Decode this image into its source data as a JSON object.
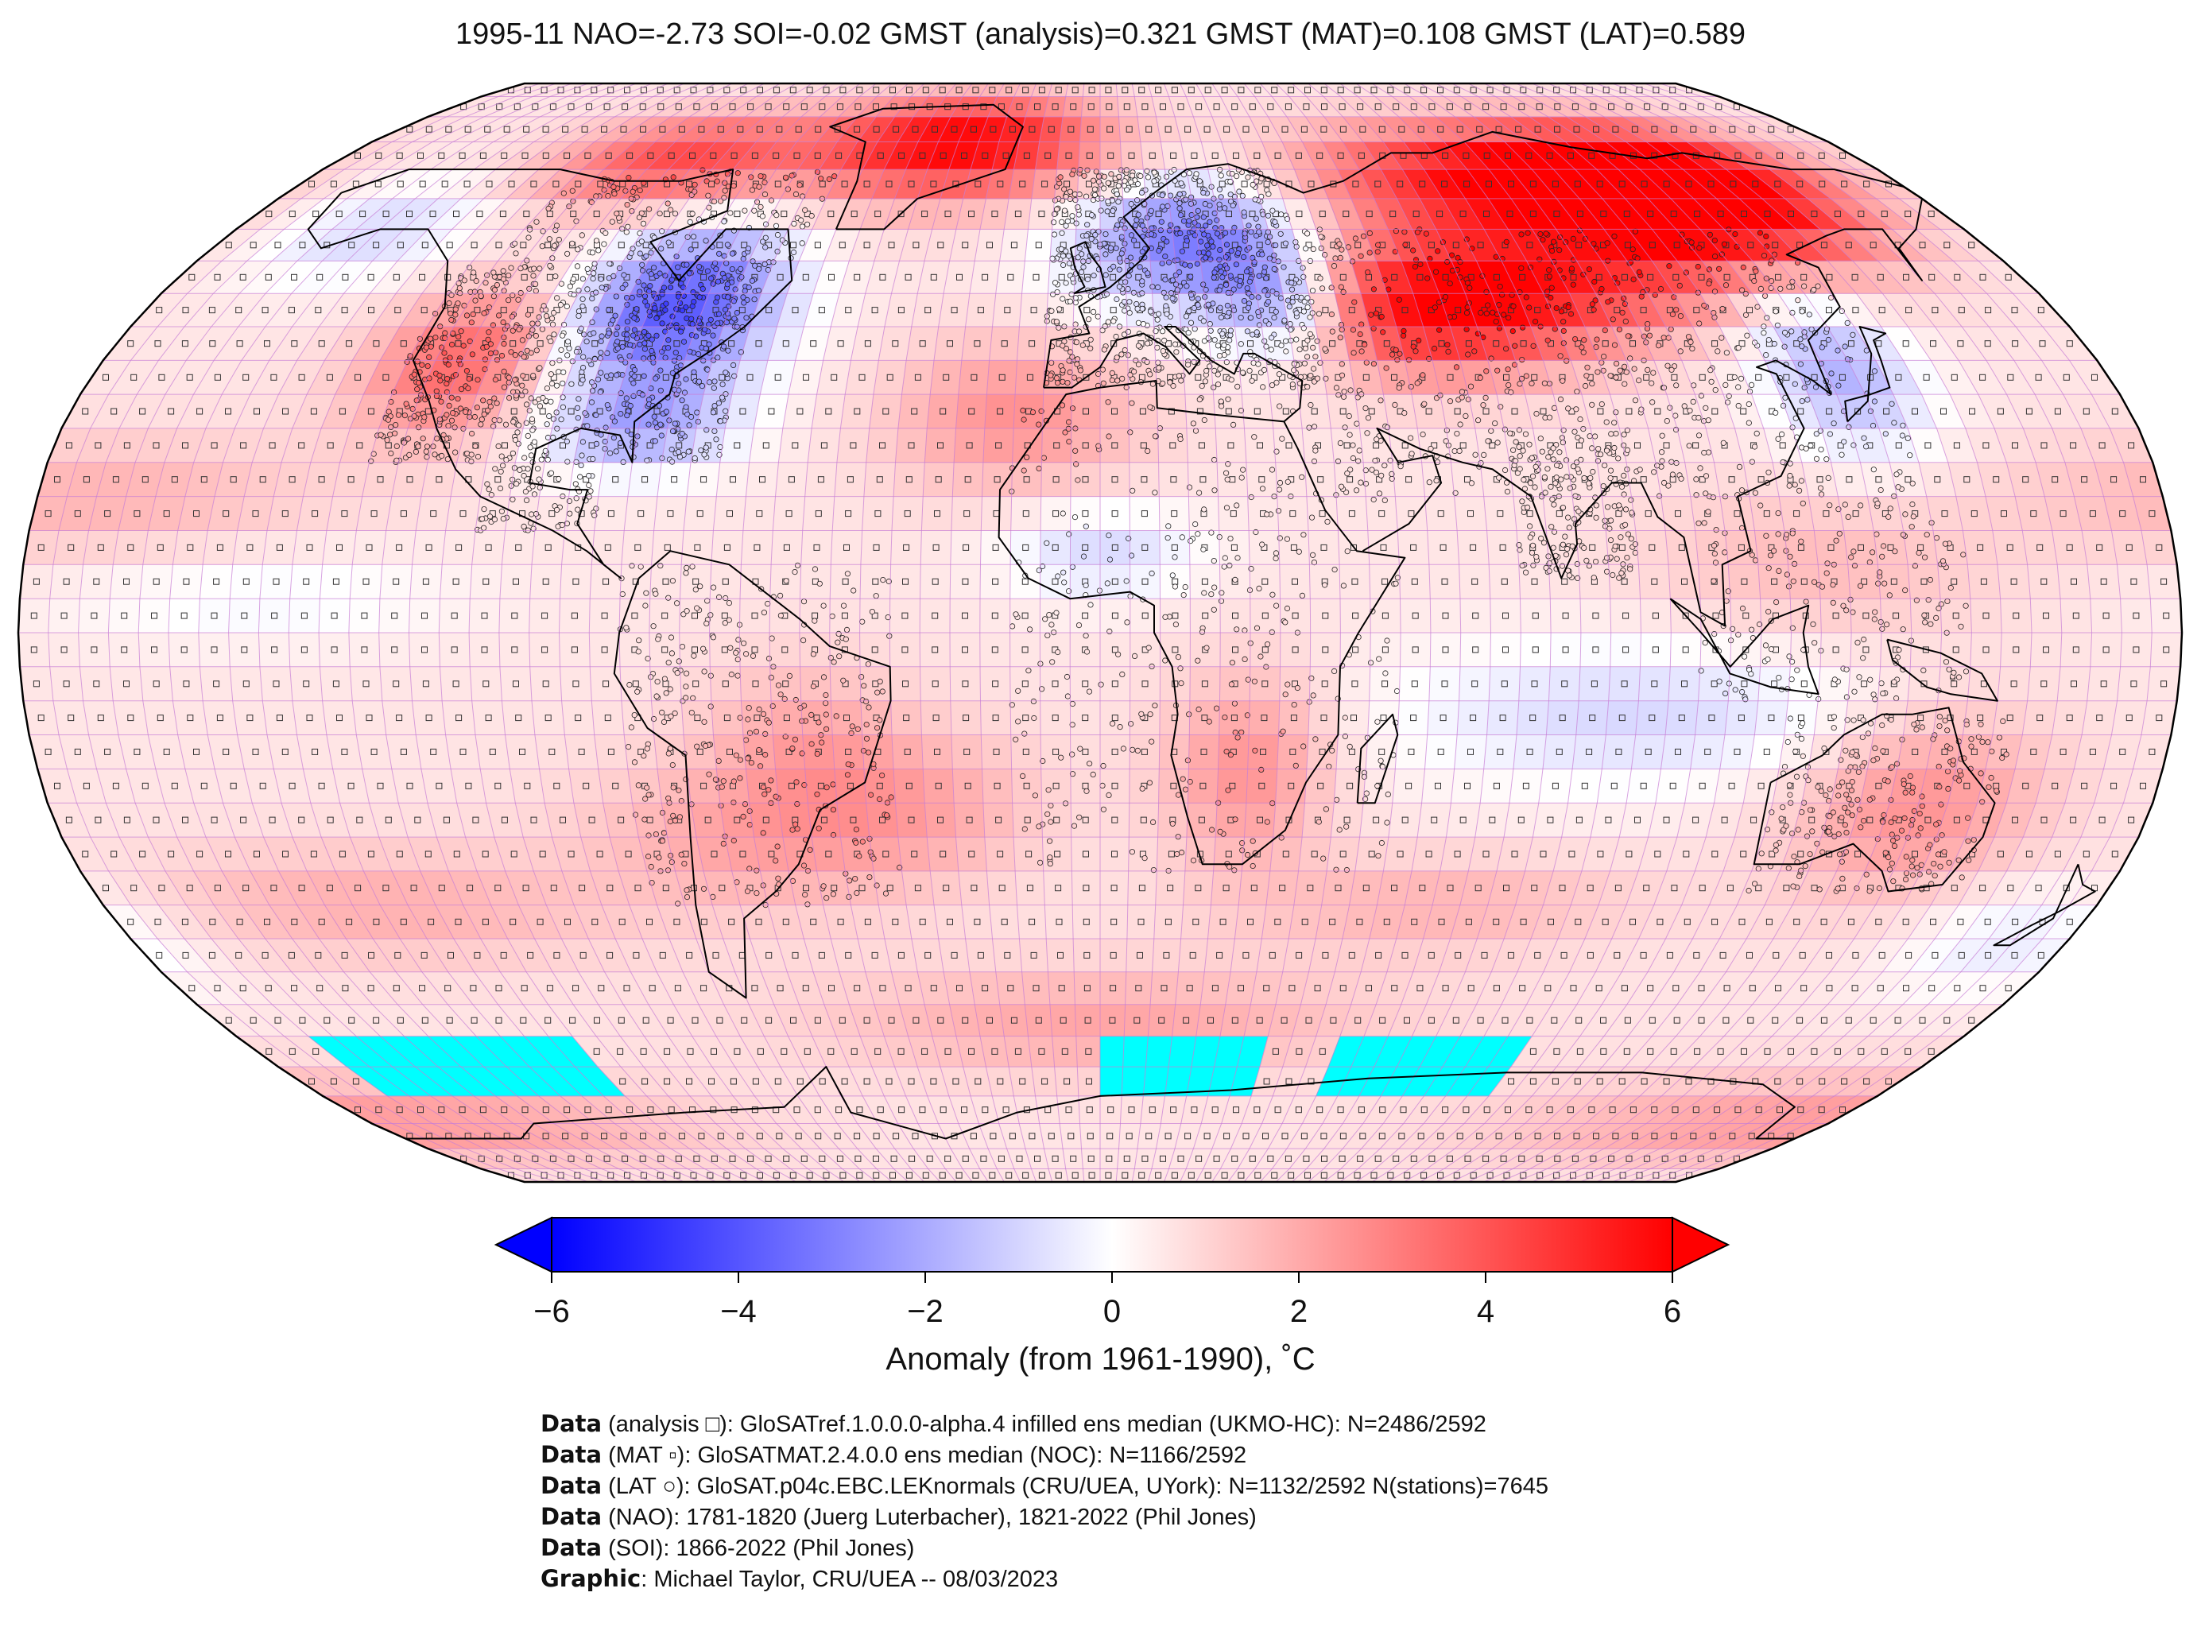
{
  "title": "1995-11 NAO=-2.73 SOI=-0.02 GMST (analysis)=0.321 GMST (MAT)=0.108 GMST (LAT)=0.589",
  "map": {
    "projection": "robinson",
    "grid": true,
    "colormap": {
      "low": "#0000ff",
      "mid": "#ffffff",
      "high": "#ff0000",
      "missing": "#00ffff"
    },
    "regions": [
      {
        "name": "Greenland / Arctic Canada",
        "anomaly": 5.5
      },
      {
        "name": "Eastern North America",
        "anomaly": -4.5
      },
      {
        "name": "Western North America",
        "anomaly": 3
      },
      {
        "name": "Northern Europe",
        "anomaly": -4
      },
      {
        "name": "Northern Siberia",
        "anomaly": 6
      },
      {
        "name": "Central Asia",
        "anomaly": 4
      },
      {
        "name": "East Asia",
        "anomaly": -2.5
      },
      {
        "name": "Australia",
        "anomaly": 2
      },
      {
        "name": "Southern Africa",
        "anomaly": 2
      },
      {
        "name": "Southern Ocean (no data)",
        "anomaly": null
      }
    ]
  },
  "colorbar": {
    "label": "Anomaly (from 1961-1990), ˚C",
    "min": -6,
    "max": 6,
    "extend": "both",
    "ticks": [
      "−6",
      "−4",
      "−2",
      "0",
      "2",
      "4",
      "6"
    ]
  },
  "credits": [
    {
      "key": "Data",
      "text": " (analysis □): GloSATref.1.0.0.0-alpha.4 infilled ens median (UKMO-HC): N=2486/2592"
    },
    {
      "key": "Data",
      "text": " (MAT ▫): GloSATMAT.2.4.0.0 ens median (NOC): N=1166/2592"
    },
    {
      "key": "Data",
      "text": " (LAT ○): GloSAT.p04c.EBC.LEKnormals (CRU/UEA, UYork): N=1132/2592 N(stations)=7645"
    },
    {
      "key": "Data",
      "text": " (NAO): 1781-1820 (Juerg Luterbacher), 1821-2022 (Phil Jones)"
    },
    {
      "key": "Data",
      "text": " (SOI): 1866-2022 (Phil Jones)"
    },
    {
      "key": "Graphic",
      "text": ": Michael Taylor, CRU/UEA -- 08/03/2023"
    }
  ]
}
